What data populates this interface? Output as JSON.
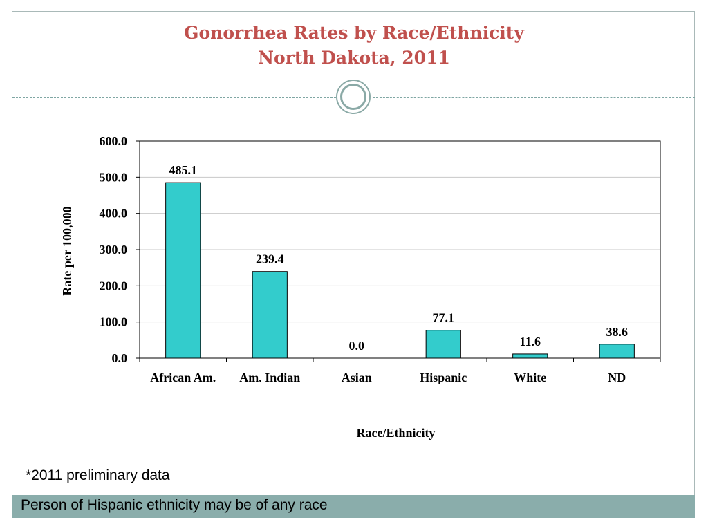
{
  "slide": {
    "title_line1": "Gonorrhea Rates by Race/Ethnicity",
    "title_line2": "North Dakota, 2011",
    "footnote": "*2011 preliminary data",
    "footer": "Person of Hispanic ethnicity may be of any race",
    "colors": {
      "title": "#c0504d",
      "bar": "#33cccc",
      "footer_band": "#8aadab"
    }
  },
  "chart_data": {
    "type": "bar",
    "categories": [
      "African Am.",
      "Am. Indian",
      "Asian",
      "Hispanic",
      "White",
      "ND"
    ],
    "values": [
      485.1,
      239.4,
      0.0,
      77.1,
      11.6,
      38.6
    ],
    "data_labels": [
      "485.1",
      "239.4",
      "0.0",
      "77.1",
      "11.6",
      "38.6"
    ],
    "xlabel": "Race/Ethnicity",
    "ylabel": "Rate per 100,000",
    "ylim": [
      0,
      600
    ],
    "yticks": [
      "0.0",
      "100.0",
      "200.0",
      "300.0",
      "400.0",
      "500.0",
      "600.0"
    ],
    "grid": true,
    "legend": "none"
  }
}
